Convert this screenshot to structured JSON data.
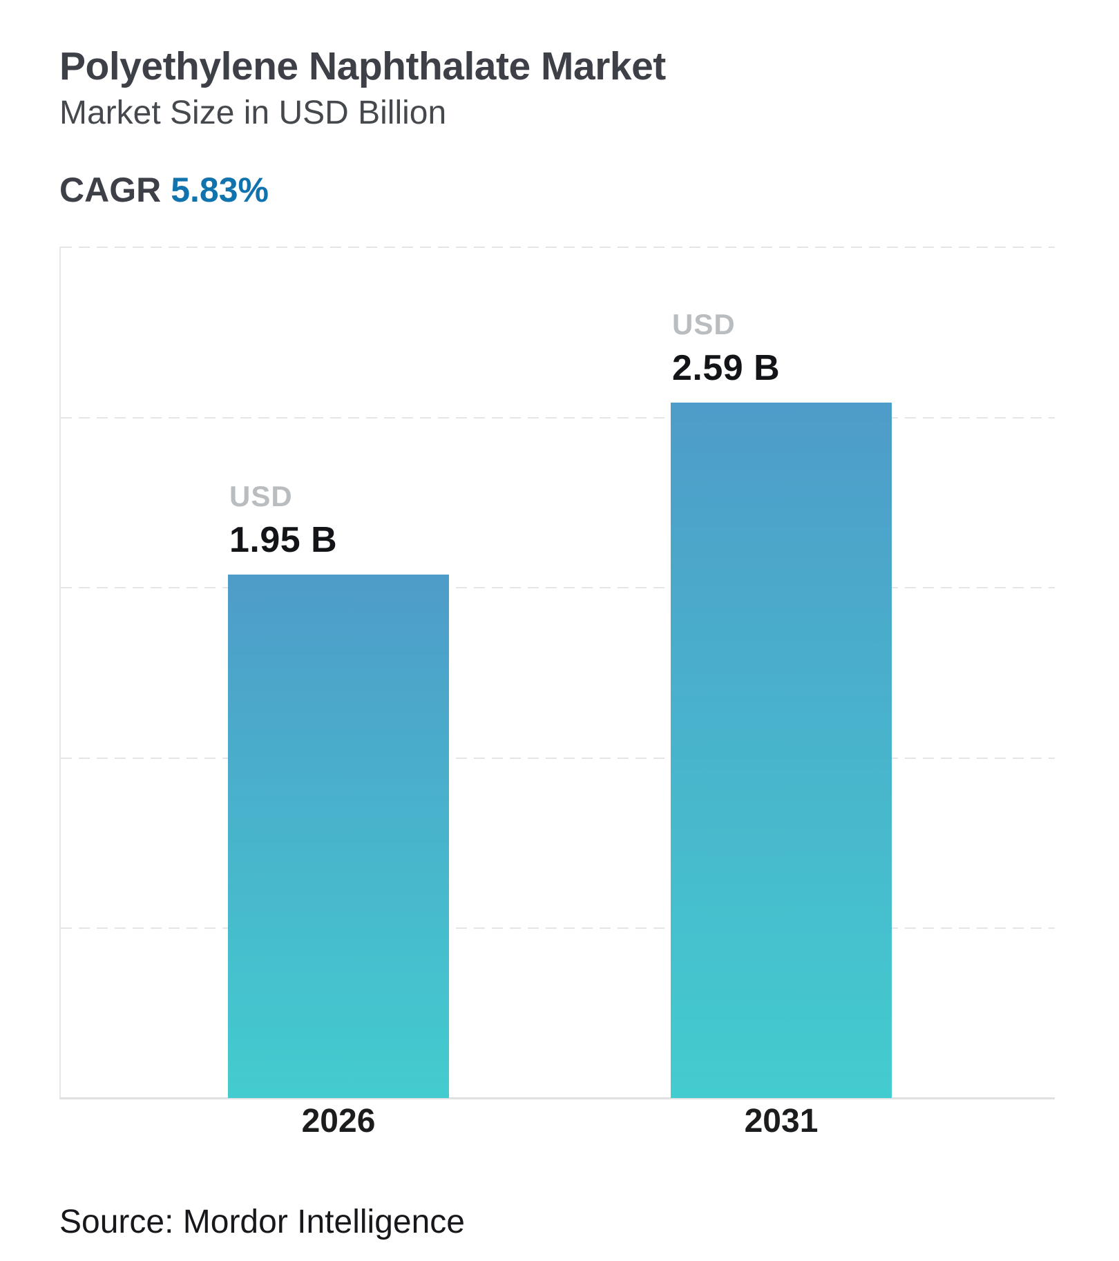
{
  "header": {
    "title": "Polyethylene Naphthalate Market",
    "subtitle": "Market Size in USD Billion",
    "cagr_label": "CAGR",
    "cagr_value": "5.83%"
  },
  "chart_data": {
    "type": "bar",
    "title": "Polyethylene Naphthalate Market",
    "subtitle": "Market Size in USD Billion",
    "cagr_percent": 5.83,
    "categories": [
      "2026",
      "2031"
    ],
    "values": [
      1.95,
      2.59
    ],
    "unit": "USD Billion",
    "bar_labels": [
      {
        "currency": "USD",
        "value": "1.95 B"
      },
      {
        "currency": "USD",
        "value": "2.59 B"
      }
    ],
    "xlabel": "",
    "ylabel": "",
    "ylim": [
      0,
      3.17
    ],
    "grid": "horizontal-dashed, 5 divisions, y-axis ticks hidden",
    "legend": "none",
    "bar_gradient_top": "#4e9cc9",
    "bar_gradient_bottom": "#43cccf"
  },
  "colors": {
    "title_text": "#3d4147",
    "cagr_accent_blue": "#1173ae",
    "usd_label_gray": "#babdbf",
    "value_text": "#121418",
    "gridline": "#e4e5e7",
    "axis_line": "#dfe0e2",
    "background": "#ffffff"
  },
  "footer": {
    "source": "Source: Mordor Intelligence"
  }
}
